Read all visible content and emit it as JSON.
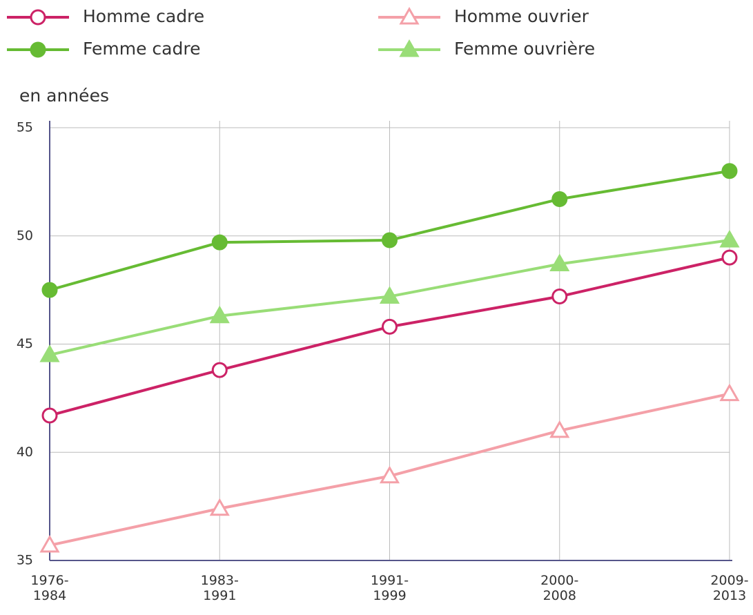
{
  "chart_data": {
    "type": "line",
    "y_label": "en années",
    "categories": [
      "1976-1984",
      "1983-1991",
      "1991-1999",
      "2000-2008",
      "2009-2013"
    ],
    "series": [
      {
        "name": "Homme cadre",
        "color": "#cc2266",
        "marker": "circle",
        "filled": false,
        "values": [
          41.7,
          43.8,
          45.8,
          47.2,
          49.0
        ]
      },
      {
        "name": "Femme cadre",
        "color": "#66bb33",
        "marker": "circle",
        "filled": true,
        "values": [
          47.5,
          49.7,
          49.8,
          51.7,
          53.0
        ]
      },
      {
        "name": "Homme ouvrier",
        "color": "#f4a0a8",
        "marker": "triangle",
        "filled": false,
        "values": [
          35.7,
          37.4,
          38.9,
          41.0,
          42.7
        ]
      },
      {
        "name": "Femme ouvrière",
        "color": "#99dd77",
        "marker": "triangle",
        "filled": true,
        "values": [
          44.5,
          46.3,
          47.2,
          48.7,
          49.8
        ]
      }
    ],
    "ylim": [
      35,
      55
    ],
    "yticks": [
      35,
      40,
      45,
      50,
      55
    ],
    "grid": true
  }
}
